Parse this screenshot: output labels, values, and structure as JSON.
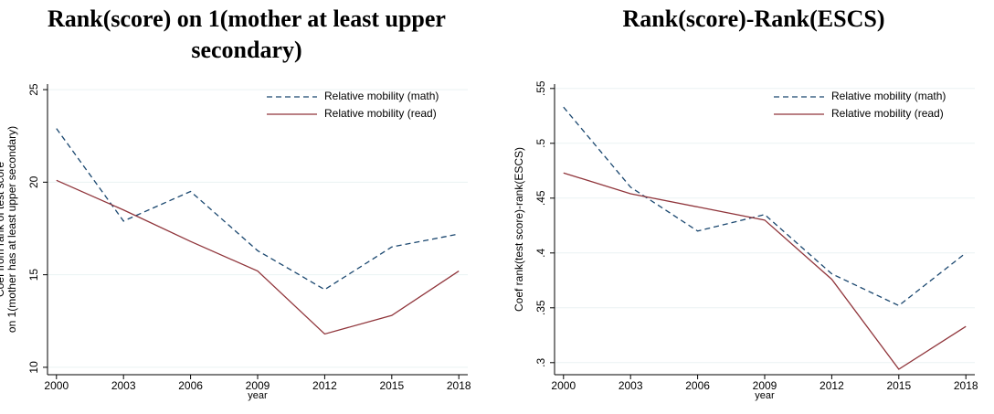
{
  "chart_data": [
    {
      "type": "line",
      "title": "Rank(score) on 1(mother at least upper secondary)",
      "xlabel": "year",
      "ylabel": [
        "Coef from rank of test score",
        "on 1(mother has at least upper secondary)"
      ],
      "x": [
        2000,
        2003,
        2006,
        2009,
        2012,
        2015,
        2018
      ],
      "xlim": [
        1999.6,
        2018.4
      ],
      "xticks": [
        2000,
        2003,
        2006,
        2009,
        2012,
        2015,
        2018
      ],
      "ylim": [
        9.6,
        25.3
      ],
      "yticks": [
        10,
        15,
        20,
        25
      ],
      "grid": true,
      "legend": "upper right",
      "series": [
        {
          "name": "Relative mobility (math)",
          "color": "#1a476f",
          "dashed": true,
          "values": [
            22.9,
            17.9,
            19.5,
            16.3,
            14.2,
            16.5,
            17.2
          ]
        },
        {
          "name": "Relative mobility (read)",
          "color": "#90353b",
          "dashed": false,
          "values": [
            20.1,
            18.5,
            16.8,
            15.2,
            11.8,
            12.8,
            15.2
          ]
        }
      ]
    },
    {
      "type": "line",
      "title": "Rank(score)-Rank(ESCS)",
      "xlabel": "year",
      "ylabel": [
        "Coef rank(test score)-rank(ESCS)"
      ],
      "x": [
        2000,
        2003,
        2006,
        2009,
        2012,
        2015,
        2018
      ],
      "xlim": [
        1999.6,
        2018.4
      ],
      "xticks": [
        2000,
        2003,
        2006,
        2009,
        2012,
        2015,
        2018
      ],
      "ylim": [
        0.289,
        0.554
      ],
      "yticks": [
        {
          "value": 0.3,
          "label": ".3"
        },
        {
          "value": 0.35,
          "label": ".35"
        },
        {
          "value": 0.4,
          "label": ".4"
        },
        {
          "value": 0.45,
          "label": ".45"
        },
        {
          "value": 0.5,
          "label": ".5"
        },
        {
          "value": 0.55,
          "label": ".55"
        }
      ],
      "grid": true,
      "legend": "upper right",
      "series": [
        {
          "name": "Relative mobility (math)",
          "color": "#1a476f",
          "dashed": true,
          "values": [
            0.533,
            0.46,
            0.42,
            0.435,
            0.381,
            0.352,
            0.4
          ]
        },
        {
          "name": "Relative mobility (read)",
          "color": "#90353b",
          "dashed": false,
          "values": [
            0.473,
            0.454,
            0.442,
            0.43,
            0.376,
            0.294,
            0.333
          ]
        }
      ]
    }
  ]
}
